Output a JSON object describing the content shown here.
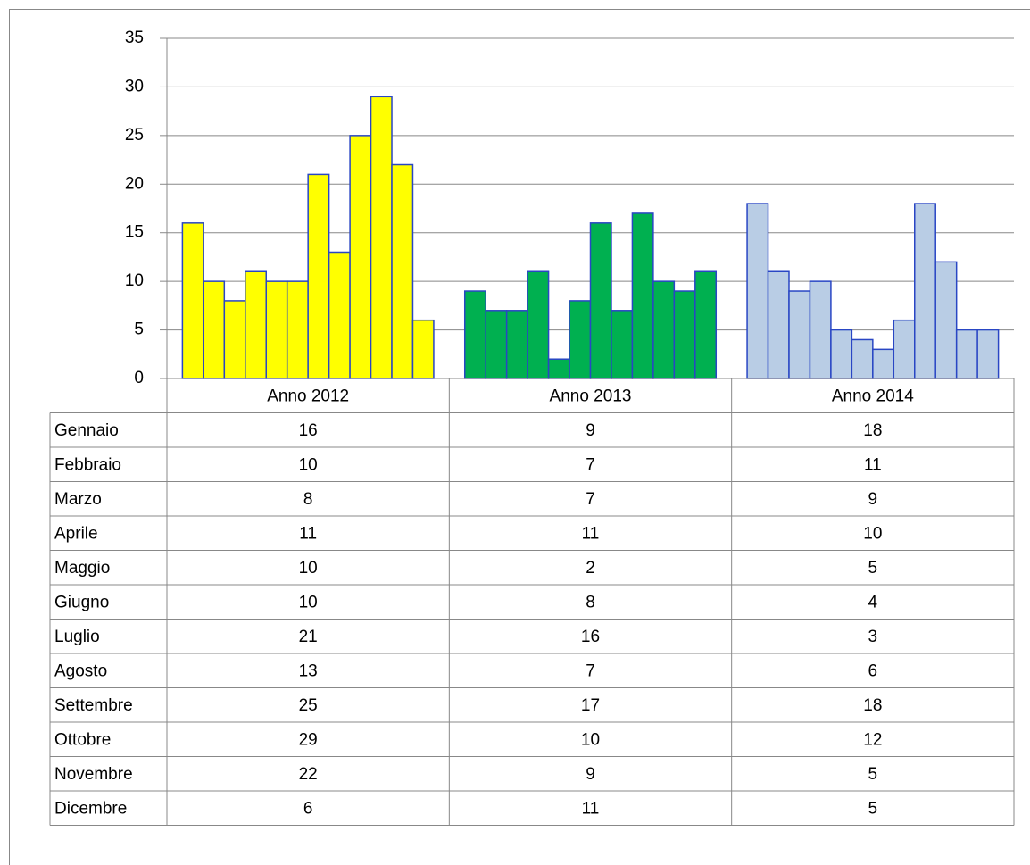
{
  "chart_data": {
    "type": "bar",
    "categories": [
      "Anno 2012",
      "Anno 2013",
      "Anno 2014"
    ],
    "category_colors": [
      "#ffff00",
      "#00b050",
      "#b9cde5"
    ],
    "edge_color": "#2946c4",
    "series": [
      {
        "name": "Gennaio",
        "values": [
          16,
          9,
          18
        ]
      },
      {
        "name": "Febbraio",
        "values": [
          10,
          7,
          11
        ]
      },
      {
        "name": "Marzo",
        "values": [
          8,
          7,
          9
        ]
      },
      {
        "name": "Aprile",
        "values": [
          11,
          11,
          10
        ]
      },
      {
        "name": "Maggio",
        "values": [
          10,
          2,
          5
        ]
      },
      {
        "name": "Giugno",
        "values": [
          10,
          8,
          4
        ]
      },
      {
        "name": "Luglio",
        "values": [
          21,
          16,
          3
        ]
      },
      {
        "name": "Agosto",
        "values": [
          13,
          7,
          6
        ]
      },
      {
        "name": "Settembre",
        "values": [
          25,
          17,
          18
        ]
      },
      {
        "name": "Ottobre",
        "values": [
          29,
          10,
          12
        ]
      },
      {
        "name": "Novembre",
        "values": [
          22,
          9,
          5
        ]
      },
      {
        "name": "Dicembre",
        "values": [
          6,
          11,
          5
        ]
      }
    ],
    "ylim": [
      0,
      35
    ],
    "yticks": [
      0,
      5,
      10,
      15,
      20,
      25,
      30,
      35
    ],
    "grid": true,
    "data_table": true
  }
}
